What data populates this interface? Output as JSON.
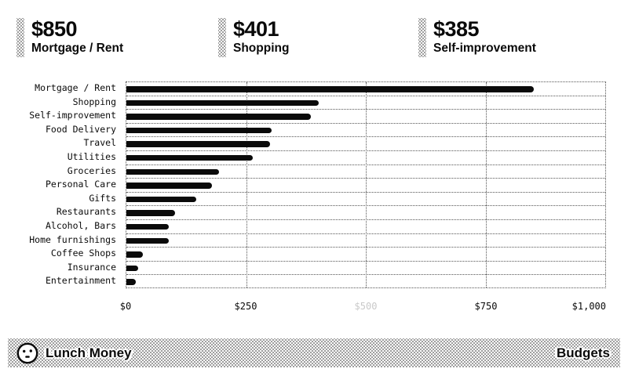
{
  "stats": [
    {
      "amount": "$850",
      "label": "Mortgage / Rent"
    },
    {
      "amount": "$401",
      "label": "Shopping"
    },
    {
      "amount": "$385",
      "label": "Self-improvement"
    }
  ],
  "chart_data": {
    "type": "bar",
    "orientation": "horizontal",
    "categories": [
      "Mortgage / Rent",
      "Shopping",
      "Self-improvement",
      "Food Delivery",
      "Travel",
      "Utilities",
      "Groceries",
      "Personal Care",
      "Gifts",
      "Restaurants",
      "Alcohol, Bars",
      "Home furnishings",
      "Coffee Shops",
      "Insurance",
      "Entertainment"
    ],
    "values": [
      850,
      401,
      385,
      304,
      300,
      264,
      193,
      179,
      146,
      101,
      89,
      88,
      34,
      24,
      19
    ],
    "xlim": [
      0,
      1000
    ],
    "x_ticks": [
      {
        "label": "$0",
        "value": 0,
        "muted": false
      },
      {
        "label": "$250",
        "value": 250,
        "muted": false
      },
      {
        "label": "$500",
        "value": 500,
        "muted": true
      },
      {
        "label": "$750",
        "value": 750,
        "muted": false
      },
      {
        "label": "$1,000",
        "value": 1000,
        "muted": false
      }
    ],
    "title": "",
    "xlabel": "",
    "ylabel": "",
    "grid": "dotted",
    "legend": "none",
    "bar_color": "#0a0a0a"
  },
  "footer": {
    "brand": "Lunch Money",
    "page_label": "Budgets",
    "logo": "smiley-coin-icon"
  },
  "colors": {
    "background": "#ffffff",
    "text": "#0a0a0a",
    "muted_tick": "#c9c9c9",
    "pattern_dot": "#9e9e9e",
    "grid_dot": "#555555"
  }
}
